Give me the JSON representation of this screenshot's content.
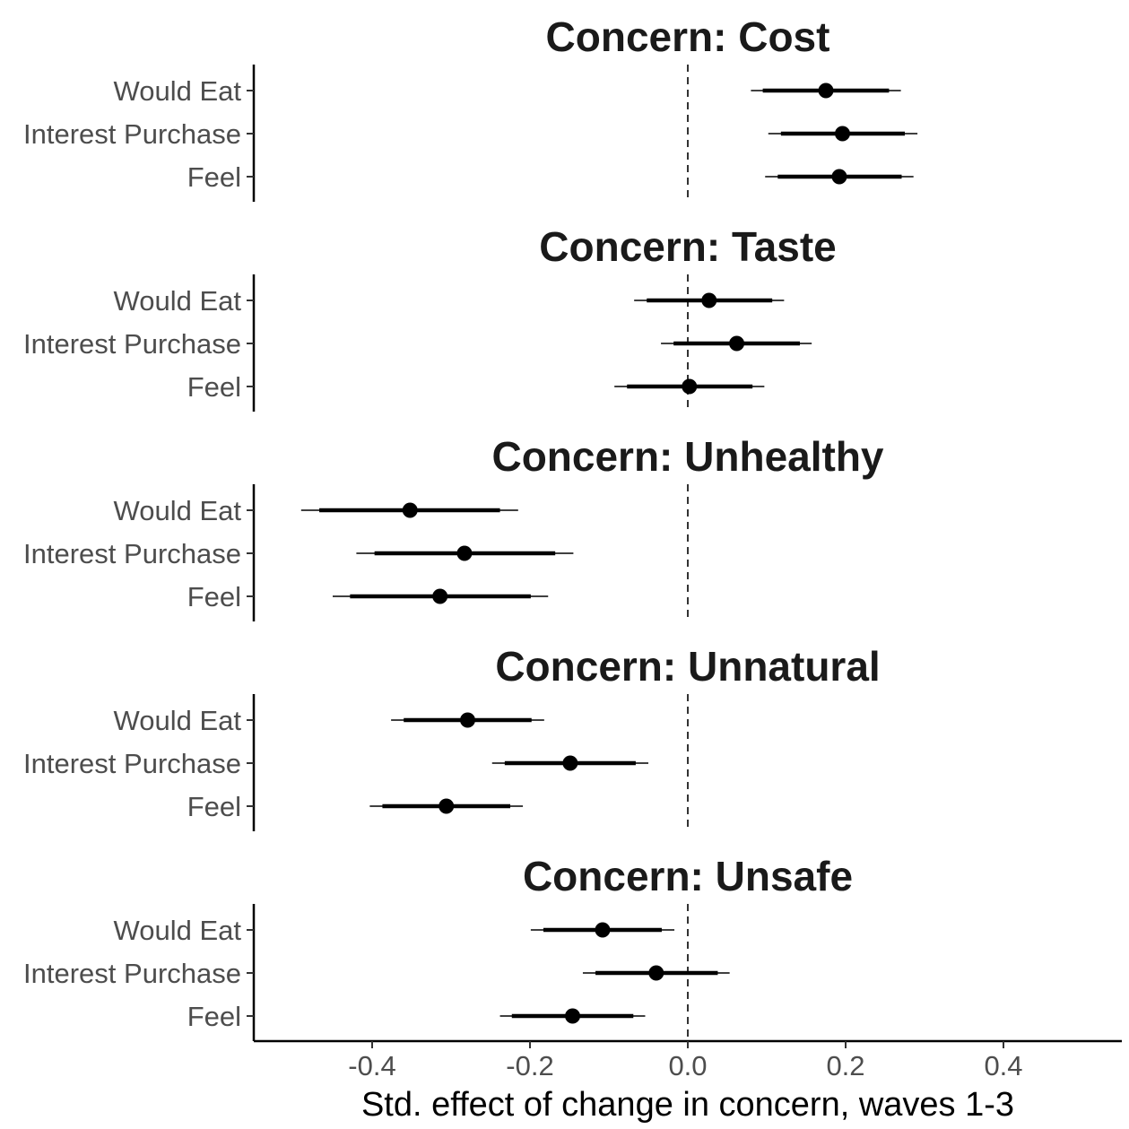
{
  "chart_data": {
    "type": "forest",
    "xlabel": "Std. effect of change in concern, waves 1-3",
    "xlim": [
      -0.55,
      0.55
    ],
    "xticks": [
      -0.4,
      -0.2,
      0.0,
      0.2,
      0.4
    ],
    "xtick_labels": [
      "-0.4",
      "-0.2",
      "0.0",
      "0.2",
      "0.4"
    ],
    "reference_line": 0.0,
    "grid": false,
    "row_labels": [
      "Would Eat",
      "Interest Purchase",
      "Feel"
    ],
    "facets": [
      {
        "title": "Concern: Cost",
        "rows": [
          {
            "label": "Would Eat",
            "estimate": 0.175,
            "inner": [
              0.095,
              0.255
            ],
            "outer": [
              0.08,
              0.27
            ]
          },
          {
            "label": "Interest Purchase",
            "estimate": 0.196,
            "inner": [
              0.118,
              0.275
            ],
            "outer": [
              0.102,
              0.291
            ]
          },
          {
            "label": "Feel",
            "estimate": 0.192,
            "inner": [
              0.114,
              0.271
            ],
            "outer": [
              0.098,
              0.286
            ]
          }
        ]
      },
      {
        "title": "Concern: Taste",
        "rows": [
          {
            "label": "Would Eat",
            "estimate": 0.027,
            "inner": [
              -0.052,
              0.107
            ],
            "outer": [
              -0.068,
              0.122
            ]
          },
          {
            "label": "Interest Purchase",
            "estimate": 0.062,
            "inner": [
              -0.018,
              0.142
            ],
            "outer": [
              -0.034,
              0.157
            ]
          },
          {
            "label": "Feel",
            "estimate": 0.002,
            "inner": [
              -0.077,
              0.082
            ],
            "outer": [
              -0.093,
              0.097
            ]
          }
        ]
      },
      {
        "title": "Concern: Unhealthy",
        "rows": [
          {
            "label": "Would Eat",
            "estimate": -0.352,
            "inner": [
              -0.467,
              -0.238
            ],
            "outer": [
              -0.49,
              -0.215
            ]
          },
          {
            "label": "Interest Purchase",
            "estimate": -0.283,
            "inner": [
              -0.397,
              -0.168
            ],
            "outer": [
              -0.42,
              -0.145
            ]
          },
          {
            "label": "Feel",
            "estimate": -0.314,
            "inner": [
              -0.428,
              -0.199
            ],
            "outer": [
              -0.45,
              -0.177
            ]
          }
        ]
      },
      {
        "title": "Concern: Unnatural",
        "rows": [
          {
            "label": "Would Eat",
            "estimate": -0.279,
            "inner": [
              -0.36,
              -0.198
            ],
            "outer": [
              -0.376,
              -0.182
            ]
          },
          {
            "label": "Interest Purchase",
            "estimate": -0.149,
            "inner": [
              -0.232,
              -0.066
            ],
            "outer": [
              -0.248,
              -0.05
            ]
          },
          {
            "label": "Feel",
            "estimate": -0.306,
            "inner": [
              -0.387,
              -0.225
            ],
            "outer": [
              -0.403,
              -0.209
            ]
          }
        ]
      },
      {
        "title": "Concern: Unsafe",
        "rows": [
          {
            "label": "Would Eat",
            "estimate": -0.108,
            "inner": [
              -0.183,
              -0.033
            ],
            "outer": [
              -0.199,
              -0.017
            ]
          },
          {
            "label": "Interest Purchase",
            "estimate": -0.04,
            "inner": [
              -0.117,
              0.038
            ],
            "outer": [
              -0.133,
              0.053
            ]
          },
          {
            "label": "Feel",
            "estimate": -0.146,
            "inner": [
              -0.223,
              -0.069
            ],
            "outer": [
              -0.238,
              -0.054
            ]
          }
        ]
      }
    ]
  }
}
